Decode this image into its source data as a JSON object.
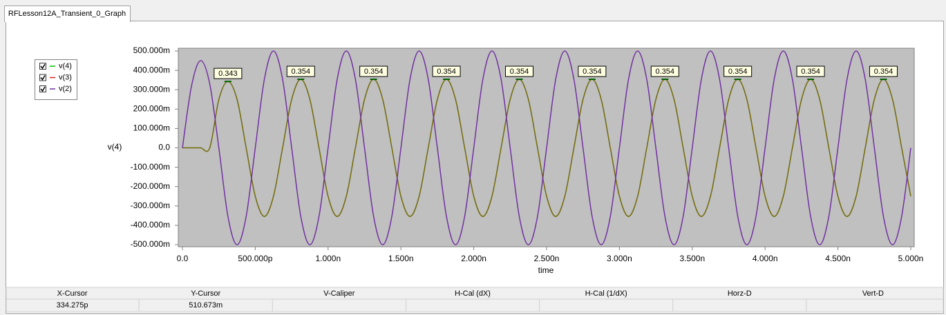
{
  "tab": {
    "title": "RFLesson12A_Transient_0_Graph"
  },
  "chart_data": {
    "type": "line",
    "ylabel": "v(4)",
    "xlabel": "time",
    "x": [
      0,
      0.0625,
      0.125,
      0.1875,
      0.25,
      0.3125,
      0.375,
      0.4375,
      0.5,
      0.5625,
      0.625,
      0.6875,
      0.75,
      0.8125,
      0.875,
      0.9375,
      1,
      1.0625,
      1.125,
      1.1875,
      1.25,
      1.3125,
      1.375,
      1.4375,
      1.5,
      1.5625,
      1.625,
      1.6875,
      1.75,
      1.8125,
      1.875,
      1.9375,
      2,
      2.0625,
      2.125,
      2.1875,
      2.25,
      2.3125,
      2.375,
      2.4375,
      2.5,
      2.5625,
      2.625,
      2.6875,
      2.75,
      2.8125,
      2.875,
      2.9375,
      3,
      3.0625,
      3.125,
      3.1875,
      3.25,
      3.3125,
      3.375,
      3.4375,
      3.5,
      3.5625,
      3.625,
      3.6875,
      3.75,
      3.8125,
      3.875,
      3.9375,
      4,
      4.0625,
      4.125,
      4.1875,
      4.25,
      4.3125,
      4.375,
      4.4375,
      4.5,
      4.5625,
      4.625,
      4.6875,
      4.75,
      4.8125,
      4.875,
      4.9375,
      5
    ],
    "series": [
      {
        "name": "v(4)",
        "color": "#00c000",
        "values": [
          0,
          0,
          0,
          0,
          0.25,
          0.343,
          0.25,
          0,
          -0.25,
          -0.354,
          -0.25,
          0,
          0.25,
          0.354,
          0.25,
          0,
          -0.25,
          -0.354,
          -0.25,
          0,
          0.25,
          0.354,
          0.25,
          0,
          -0.25,
          -0.354,
          -0.25,
          0,
          0.25,
          0.354,
          0.25,
          0,
          -0.25,
          -0.354,
          -0.25,
          0,
          0.25,
          0.354,
          0.25,
          0,
          -0.25,
          -0.354,
          -0.25,
          0,
          0.25,
          0.354,
          0.25,
          0,
          -0.25,
          -0.354,
          -0.25,
          0,
          0.25,
          0.354,
          0.25,
          0,
          -0.25,
          -0.354,
          -0.25,
          0,
          0.25,
          0.354,
          0.25,
          0,
          -0.25,
          -0.354,
          -0.25,
          0,
          0.25,
          0.354,
          0.25,
          0,
          -0.25,
          -0.354,
          -0.25,
          0,
          0.25,
          0.354,
          0.25,
          0,
          -0.25
        ]
      },
      {
        "name": "v(3)",
        "color": "#e02020",
        "values": [
          0,
          0,
          0,
          0,
          0.25,
          0.343,
          0.25,
          0,
          -0.25,
          -0.354,
          -0.25,
          0,
          0.25,
          0.354,
          0.25,
          0,
          -0.25,
          -0.354,
          -0.25,
          0,
          0.25,
          0.354,
          0.25,
          0,
          -0.25,
          -0.354,
          -0.25,
          0,
          0.25,
          0.354,
          0.25,
          0,
          -0.25,
          -0.354,
          -0.25,
          0,
          0.25,
          0.354,
          0.25,
          0,
          -0.25,
          -0.354,
          -0.25,
          0,
          0.25,
          0.354,
          0.25,
          0,
          -0.25,
          -0.354,
          -0.25,
          0,
          0.25,
          0.354,
          0.25,
          0,
          -0.25,
          -0.354,
          -0.25,
          0,
          0.25,
          0.354,
          0.25,
          0,
          -0.25,
          -0.354,
          -0.25,
          0,
          0.25,
          0.354,
          0.25,
          0,
          -0.25,
          -0.354,
          -0.25,
          0,
          0.25,
          0.354,
          0.25,
          0,
          -0.25
        ]
      },
      {
        "name": "v(2)",
        "color": "#7030a0",
        "values": [
          0,
          0.32,
          0.45,
          0.33,
          0,
          -0.354,
          -0.5,
          -0.354,
          0,
          0.354,
          0.5,
          0.354,
          0,
          -0.354,
          -0.5,
          -0.354,
          0,
          0.354,
          0.5,
          0.354,
          0,
          -0.354,
          -0.5,
          -0.354,
          0,
          0.354,
          0.5,
          0.354,
          0,
          -0.354,
          -0.5,
          -0.354,
          0,
          0.354,
          0.5,
          0.354,
          0,
          -0.354,
          -0.5,
          -0.354,
          0,
          0.354,
          0.5,
          0.354,
          0,
          -0.354,
          -0.5,
          -0.354,
          0,
          0.354,
          0.5,
          0.354,
          0,
          -0.354,
          -0.5,
          -0.354,
          0,
          0.354,
          0.5,
          0.354,
          0,
          -0.354,
          -0.5,
          -0.354,
          0,
          0.354,
          0.5,
          0.354,
          0,
          -0.354,
          -0.5,
          -0.354,
          0,
          0.354,
          0.5,
          0.354,
          0,
          -0.354,
          -0.5,
          -0.354,
          0
        ]
      }
    ],
    "labeled_points": [
      5,
      13,
      21,
      29,
      37,
      45,
      53,
      61,
      69,
      77
    ],
    "xlim": [
      0,
      5
    ],
    "ylim": [
      -0.5,
      0.5
    ],
    "xticks": [
      {
        "value": 0,
        "label": "0.0"
      },
      {
        "value": 0.5,
        "label": "500.000p"
      },
      {
        "value": 1,
        "label": "1.000n"
      },
      {
        "value": 1.5,
        "label": "1.500n"
      },
      {
        "value": 2,
        "label": "2.000n"
      },
      {
        "value": 2.5,
        "label": "2.500n"
      },
      {
        "value": 3,
        "label": "3.000n"
      },
      {
        "value": 3.5,
        "label": "3.500n"
      },
      {
        "value": 4,
        "label": "4.000n"
      },
      {
        "value": 4.5,
        "label": "4.500n"
      },
      {
        "value": 5,
        "label": "5.000n"
      }
    ],
    "yticks": [
      {
        "value": 0.5,
        "label": "500.000m"
      },
      {
        "value": 0.4,
        "label": "400.000m"
      },
      {
        "value": 0.3,
        "label": "300.000m"
      },
      {
        "value": 0.2,
        "label": "200.000m"
      },
      {
        "value": 0.1,
        "label": "100.000m"
      },
      {
        "value": 0,
        "label": "0.0"
      },
      {
        "value": -0.1,
        "label": "-100.000m"
      },
      {
        "value": -0.2,
        "label": "-200.000m"
      },
      {
        "value": -0.3,
        "label": "-300.000m"
      },
      {
        "value": -0.4,
        "label": "-400.000m"
      },
      {
        "value": -0.5,
        "label": "-500.000m"
      }
    ],
    "legend": "upper-left",
    "grid": false
  },
  "table": {
    "headers": [
      "X-Cursor",
      "Y-Cursor",
      "V-Caliper",
      "H-Cal (dX)",
      "H-Cal (1/dX)",
      "Horz-D",
      "Vert-D"
    ],
    "values": [
      "334.275p",
      "510.673m"
    ]
  }
}
